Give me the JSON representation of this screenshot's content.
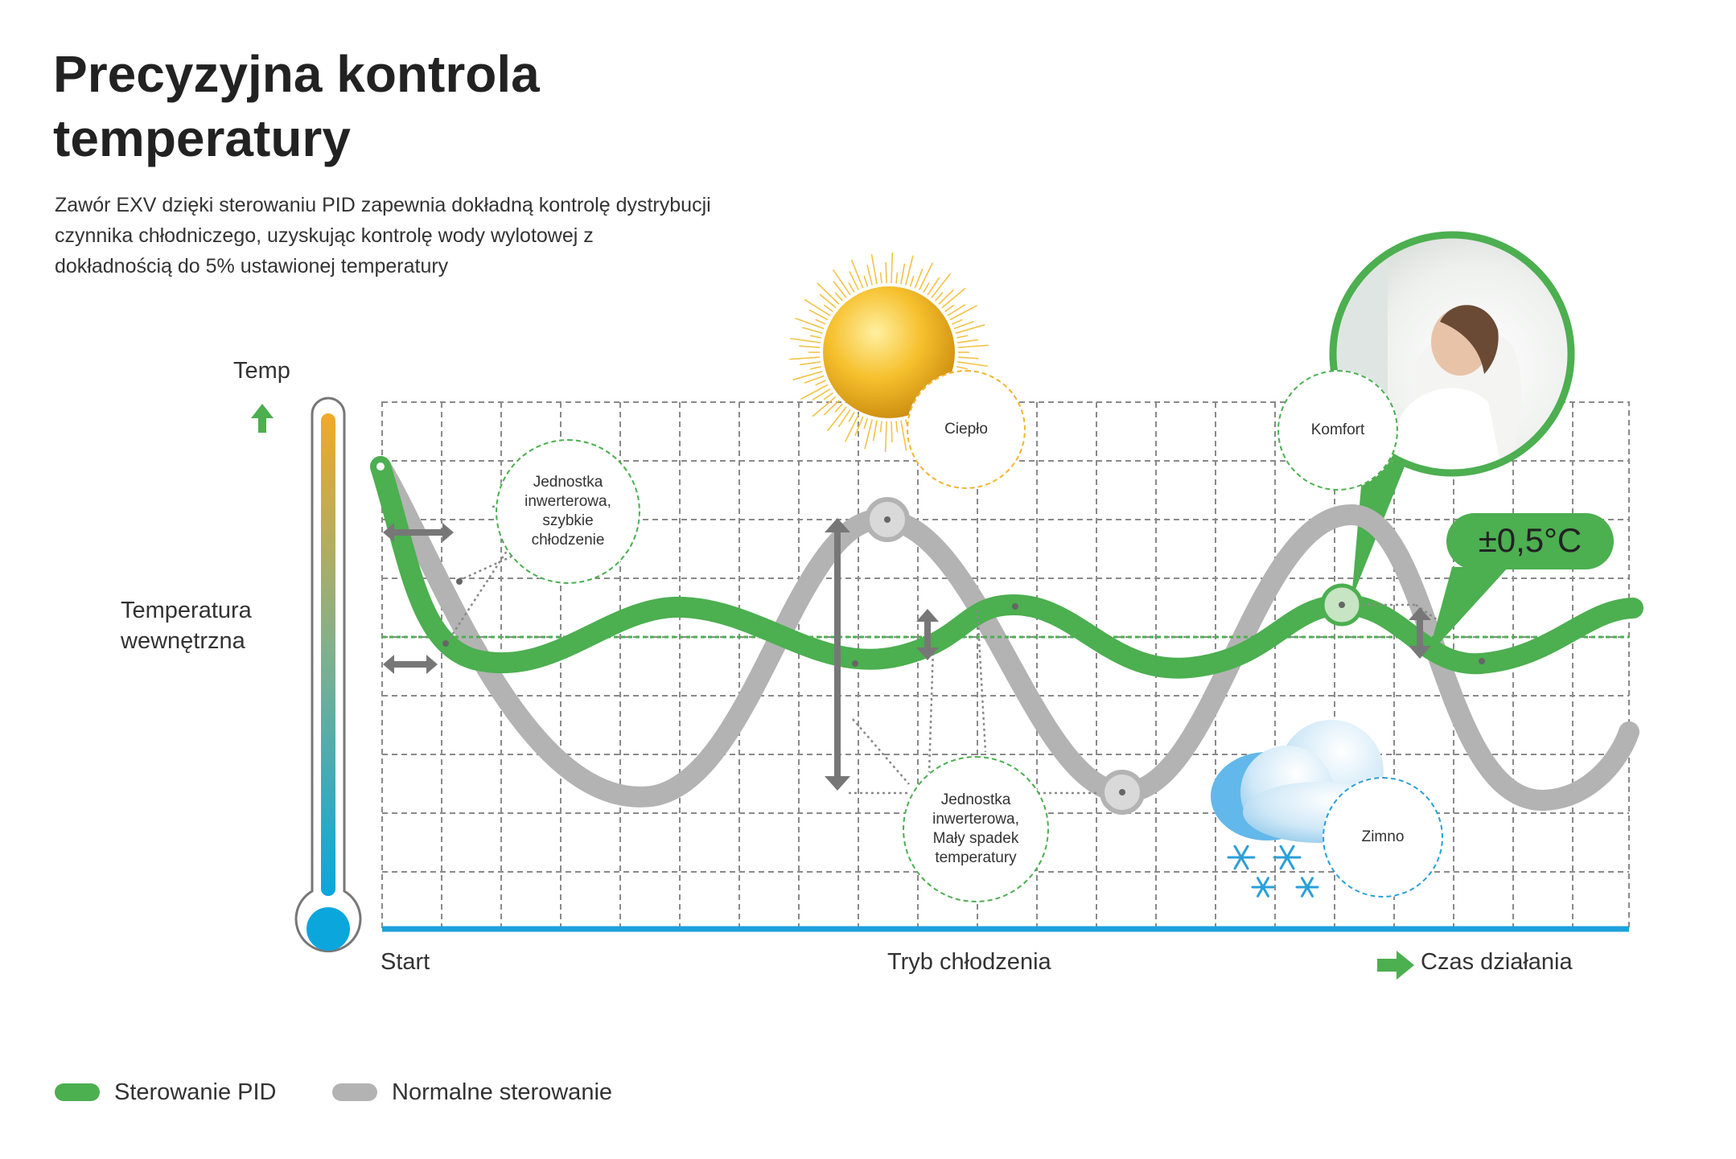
{
  "header": {
    "title": "Precyzyjna kontrola temperatury",
    "description": "Zawór EXV dzięki sterowaniu PID zapewnia dokładną kontrolę dystrybucji czynnika chłodniczego, uzyskując kontrolę wody wylotowej z dokładnością do 5% ustawionej temperatury"
  },
  "axis": {
    "y_label": "Temp",
    "indoor_temp_label": "Temperatura wewnętrzna",
    "x_start": "Start",
    "x_middle": "Tryb chłodzenia",
    "x_end": "Czas działania"
  },
  "bubbles": {
    "fast_cooling": "Jednostka inwerterowa, szybkie chłodzenie",
    "small_drop": "Jednostka inwerterowa, Mały spadek temperatury",
    "warm": "Ciepło",
    "comfort": "Komfort",
    "cold": "Zimno"
  },
  "callout": {
    "accuracy": "±0,5°C"
  },
  "legend": [
    {
      "label": "Sterowanie PID",
      "color": "#4caf50"
    },
    {
      "label": "Normalne sterowanie",
      "color": "#b3b3b3"
    }
  ],
  "icons": [
    "sun-icon",
    "cloud-icon",
    "snowflake-icon",
    "thermometer-icon",
    "arrow-up-icon",
    "arrow-right-icon",
    "woman-photo"
  ],
  "colors": {
    "pid": "#4caf50",
    "normal": "#b3b3b3",
    "grid": "#8a8a8a",
    "baseline": "#1ea0dc",
    "sun": "#f2b533",
    "cold": "#2a9fd8"
  }
}
